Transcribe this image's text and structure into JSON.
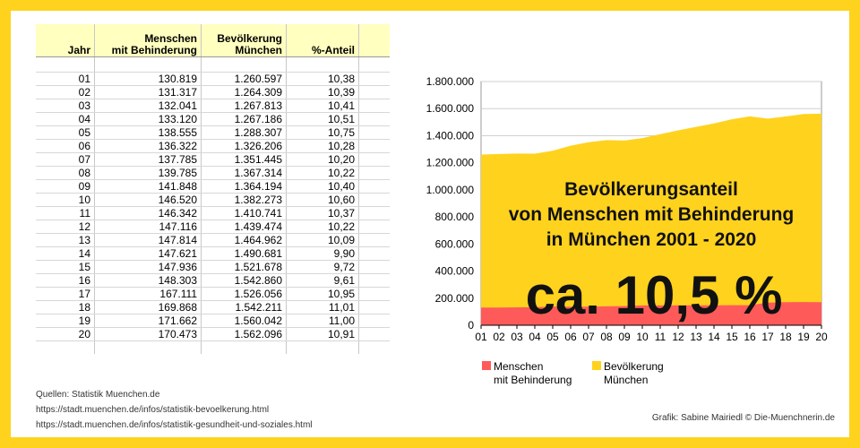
{
  "table": {
    "headers": {
      "jahr": "Jahr",
      "menschen_l1": "Menschen",
      "menschen_l2": "mit Behinderung",
      "bev_l1": "Bevölkerung",
      "bev_l2": "München",
      "anteil": "%-Anteil"
    },
    "rows": [
      {
        "jahr": "01",
        "mb": "130.819",
        "bev": "1.260.597",
        "anteil": "10,38"
      },
      {
        "jahr": "02",
        "mb": "131.317",
        "bev": "1.264.309",
        "anteil": "10,39"
      },
      {
        "jahr": "03",
        "mb": "132.041",
        "bev": "1.267.813",
        "anteil": "10,41"
      },
      {
        "jahr": "04",
        "mb": "133.120",
        "bev": "1.267.186",
        "anteil": "10,51"
      },
      {
        "jahr": "05",
        "mb": "138.555",
        "bev": "1.288.307",
        "anteil": "10,75"
      },
      {
        "jahr": "06",
        "mb": "136.322",
        "bev": "1.326.206",
        "anteil": "10,28"
      },
      {
        "jahr": "07",
        "mb": "137.785",
        "bev": "1.351.445",
        "anteil": "10,20"
      },
      {
        "jahr": "08",
        "mb": "139.785",
        "bev": "1.367.314",
        "anteil": "10,22"
      },
      {
        "jahr": "09",
        "mb": "141.848",
        "bev": "1.364.194",
        "anteil": "10,40"
      },
      {
        "jahr": "10",
        "mb": "146.520",
        "bev": "1.382.273",
        "anteil": "10,60"
      },
      {
        "jahr": "11",
        "mb": "146.342",
        "bev": "1.410.741",
        "anteil": "10,37"
      },
      {
        "jahr": "12",
        "mb": "147.116",
        "bev": "1.439.474",
        "anteil": "10,22"
      },
      {
        "jahr": "13",
        "mb": "147.814",
        "bev": "1.464.962",
        "anteil": "10,09"
      },
      {
        "jahr": "14",
        "mb": "147.621",
        "bev": "1.490.681",
        "anteil": "9,90"
      },
      {
        "jahr": "15",
        "mb": "147.936",
        "bev": "1.521.678",
        "anteil": "9,72"
      },
      {
        "jahr": "16",
        "mb": "148.303",
        "bev": "1.542.860",
        "anteil": "9,61"
      },
      {
        "jahr": "17",
        "mb": "167.111",
        "bev": "1.526.056",
        "anteil": "10,95"
      },
      {
        "jahr": "18",
        "mb": "169.868",
        "bev": "1.542.211",
        "anteil": "11,01"
      },
      {
        "jahr": "19",
        "mb": "171.662",
        "bev": "1.560.042",
        "anteil": "11,00"
      },
      {
        "jahr": "20",
        "mb": "170.473",
        "bev": "1.562.096",
        "anteil": "10,91"
      }
    ]
  },
  "sources": {
    "line1": "Quellen: Statistik Muenchen.de",
    "line2": "https://stadt.muenchen.de/infos/statistik-bevoelkerung.html",
    "line3": "https://stadt.muenchen.de/infos/statistik-gesundheit-und-soziales.html"
  },
  "credit": "Grafik: Sabine Mairiedl © Die-Muenchnerin.de",
  "chart_data": {
    "type": "area",
    "title_lines": [
      "Bevölkerungsanteil",
      "von Menschen mit Behinderung",
      "in München 2001 - 2020"
    ],
    "big_label": "ca. 10,5 %",
    "categories": [
      "01",
      "02",
      "03",
      "04",
      "05",
      "06",
      "07",
      "08",
      "09",
      "10",
      "11",
      "12",
      "13",
      "14",
      "15",
      "16",
      "17",
      "18",
      "19",
      "20"
    ],
    "series": [
      {
        "name": "Bevölkerung München",
        "legend_lines": [
          "Bevölkerung",
          "München"
        ],
        "color": "#ffd21e",
        "values": [
          1260597,
          1264309,
          1267813,
          1267186,
          1288307,
          1326206,
          1351445,
          1367314,
          1364194,
          1382273,
          1410741,
          1439474,
          1464962,
          1490681,
          1521678,
          1542860,
          1526056,
          1542211,
          1560042,
          1562096
        ]
      },
      {
        "name": "Menschen mit Behinderung",
        "legend_lines": [
          "Menschen",
          "mit Behinderung"
        ],
        "color": "#ff5a5a",
        "values": [
          130819,
          131317,
          132041,
          133120,
          138555,
          136322,
          137785,
          139785,
          141848,
          146520,
          146342,
          147116,
          147814,
          147621,
          147936,
          148303,
          167111,
          169868,
          171662,
          170473
        ]
      }
    ],
    "yticks": [
      "0",
      "200.000",
      "400.000",
      "600.000",
      "800.000",
      "1.000.000",
      "1.200.000",
      "1.400.000",
      "1.600.000",
      "1.800.000"
    ],
    "ylim": [
      0,
      1800000
    ],
    "grid": true,
    "legend_position": "bottom-left"
  }
}
